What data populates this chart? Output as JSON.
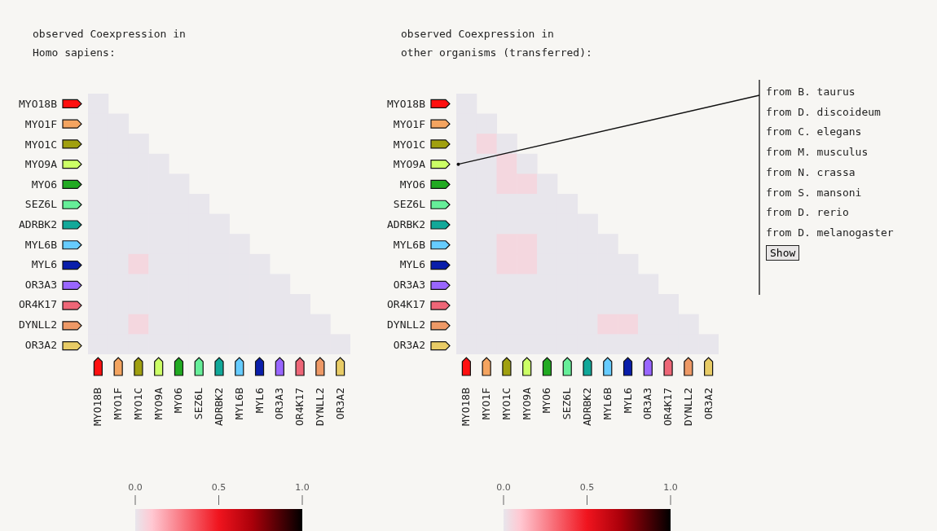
{
  "chart_data": [
    {
      "type": "heatmap",
      "title": "observed Coexpression in",
      "subtitle": "Homo sapiens:",
      "categories": [
        "MYO18B",
        "MYO1F",
        "MYO1C",
        "MYO9A",
        "MYO6",
        "SEZ6L",
        "ADRBK2",
        "MYL6B",
        "MYL6",
        "OR3A3",
        "OR4K17",
        "DYNLL2",
        "OR3A2"
      ],
      "y_categories": [
        "MYO18B",
        "MYO1F",
        "MYO1C",
        "MYO9A",
        "MYO6",
        "SEZ6L",
        "ADRBK2",
        "MYL6B",
        "MYL6",
        "OR3A3",
        "OR4K17",
        "DYNLL2",
        "OR3A2"
      ],
      "cells": [
        [
          0,
          null,
          null,
          null,
          null,
          null,
          null,
          null,
          null,
          null,
          null,
          null,
          null
        ],
        [
          0,
          0,
          null,
          null,
          null,
          null,
          null,
          null,
          null,
          null,
          null,
          null,
          null
        ],
        [
          0,
          0,
          0,
          null,
          null,
          null,
          null,
          null,
          null,
          null,
          null,
          null,
          null
        ],
        [
          0,
          0,
          0,
          0,
          null,
          null,
          null,
          null,
          null,
          null,
          null,
          null,
          null
        ],
        [
          0,
          0,
          0,
          0,
          0,
          null,
          null,
          null,
          null,
          null,
          null,
          null,
          null
        ],
        [
          0,
          0,
          0,
          0,
          0,
          0,
          null,
          null,
          null,
          null,
          null,
          null,
          null
        ],
        [
          0,
          0,
          0,
          0,
          0,
          0,
          0,
          null,
          null,
          null,
          null,
          null,
          null
        ],
        [
          0,
          0,
          0,
          0,
          0,
          0,
          0,
          0,
          null,
          null,
          null,
          null,
          null
        ],
        [
          0,
          0,
          0.05,
          0,
          0,
          0,
          0,
          0,
          0,
          null,
          null,
          null,
          null
        ],
        [
          0,
          0,
          0,
          0,
          0,
          0,
          0,
          0,
          0,
          0,
          null,
          null,
          null
        ],
        [
          0,
          0,
          0,
          0,
          0,
          0,
          0,
          0,
          0,
          0,
          0,
          null,
          null
        ],
        [
          0,
          0,
          0.05,
          0,
          0,
          0,
          0,
          0,
          0,
          0,
          0,
          0,
          null
        ],
        [
          0,
          0,
          0,
          0,
          0,
          0,
          0,
          0,
          0,
          0,
          0,
          0,
          0
        ]
      ],
      "clim": [
        0,
        1
      ],
      "cticks": [
        {
          "value": 0,
          "label": "0.0"
        },
        {
          "value": 0.5,
          "label": "0.5"
        },
        {
          "value": 1,
          "label": "1.0"
        }
      ]
    },
    {
      "type": "heatmap",
      "title": "observed Coexpression in",
      "subtitle": "other organisms (transferred):",
      "categories": [
        "MYO18B",
        "MYO1F",
        "MYO1C",
        "MYO9A",
        "MYO6",
        "SEZ6L",
        "ADRBK2",
        "MYL6B",
        "MYL6",
        "OR3A3",
        "OR4K17",
        "DYNLL2",
        "OR3A2"
      ],
      "y_categories": [
        "MYO18B",
        "MYO1F",
        "MYO1C",
        "MYO9A",
        "MYO6",
        "SEZ6L",
        "ADRBK2",
        "MYL6B",
        "MYL6",
        "OR3A3",
        "OR4K17",
        "DYNLL2",
        "OR3A2"
      ],
      "cells": [
        [
          0,
          null,
          null,
          null,
          null,
          null,
          null,
          null,
          null,
          null,
          null,
          null,
          null
        ],
        [
          0,
          0,
          null,
          null,
          null,
          null,
          null,
          null,
          null,
          null,
          null,
          null,
          null
        ],
        [
          0,
          0.05,
          0,
          null,
          null,
          null,
          null,
          null,
          null,
          null,
          null,
          null,
          null
        ],
        [
          0,
          0,
          0.05,
          0,
          null,
          null,
          null,
          null,
          null,
          null,
          null,
          null,
          null
        ],
        [
          0,
          0,
          0.05,
          0.05,
          0,
          null,
          null,
          null,
          null,
          null,
          null,
          null,
          null
        ],
        [
          0,
          0,
          0,
          0,
          0,
          0,
          null,
          null,
          null,
          null,
          null,
          null,
          null
        ],
        [
          0,
          0,
          0,
          0,
          0,
          0,
          0,
          null,
          null,
          null,
          null,
          null,
          null
        ],
        [
          0,
          0,
          0.05,
          0.05,
          0,
          0,
          0,
          0,
          null,
          null,
          null,
          null,
          null
        ],
        [
          0,
          0,
          0.05,
          0.05,
          0,
          0,
          0,
          0,
          0,
          null,
          null,
          null,
          null
        ],
        [
          0,
          0,
          0,
          0,
          0,
          0,
          0,
          0,
          0,
          0,
          null,
          null,
          null
        ],
        [
          0,
          0,
          0,
          0,
          0,
          0,
          0,
          0,
          0,
          0,
          0,
          null,
          null
        ],
        [
          0,
          0,
          0,
          0,
          0,
          0,
          0,
          0.05,
          0.05,
          0,
          0,
          0,
          null
        ],
        [
          0,
          0,
          0,
          0,
          0,
          0,
          0,
          0,
          0,
          0,
          0,
          0,
          0
        ]
      ],
      "clim": [
        0,
        1
      ],
      "cticks": [
        {
          "value": 0,
          "label": "0.0"
        },
        {
          "value": 0.5,
          "label": "0.5"
        },
        {
          "value": 1,
          "label": "1.0"
        }
      ],
      "annotations": [
        "from B. taurus",
        "from D. discoideum",
        "from C. elegans",
        "from M. musculus",
        "from N. crassa",
        "from S. mansoni",
        "from D. rerio",
        "from D. melanogaster",
        "Show"
      ]
    }
  ]
}
